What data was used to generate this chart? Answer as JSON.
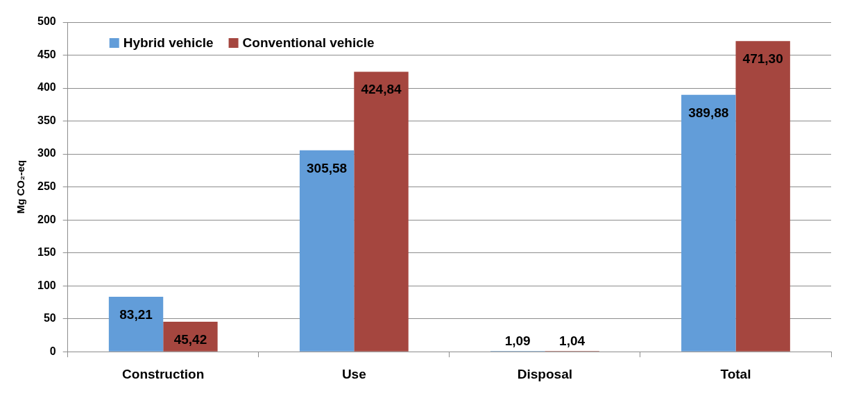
{
  "chart_data": {
    "type": "bar",
    "ylabel": "Mg CO₂-eq",
    "categories": [
      "Construction",
      "Use",
      "Disposal",
      "Total"
    ],
    "series": [
      {
        "name": "Hybrid vehicle",
        "color": "#629dd9",
        "values": [
          83.21,
          305.58,
          1.09,
          389.88
        ],
        "value_labels": [
          "83,21",
          "305,58",
          "1,09",
          "389,88"
        ]
      },
      {
        "name": "Conventional vehicle",
        "color": "#a5463f",
        "values": [
          45.42,
          424.84,
          1.04,
          471.3
        ],
        "value_labels": [
          "45,42",
          "424,84",
          "1,04",
          "471,30"
        ]
      }
    ],
    "ylim": [
      0,
      500
    ],
    "yticks": [
      0,
      50,
      100,
      150,
      200,
      250,
      300,
      350,
      400,
      450,
      500
    ],
    "grid": "y",
    "legend": "top left"
  }
}
